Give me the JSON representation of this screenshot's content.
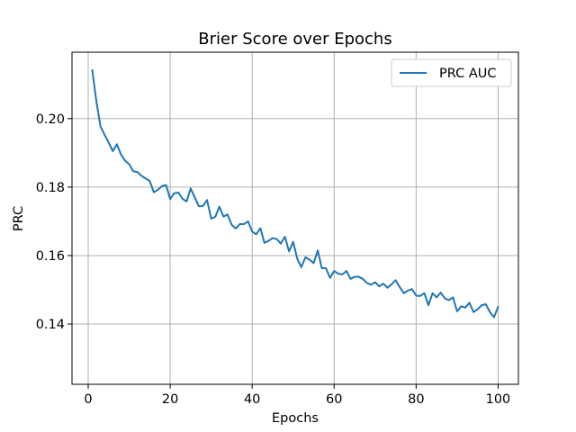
{
  "colors": {
    "series_line": "#1f77b4",
    "grid": "#b0b0b0",
    "axes": "#000000",
    "background": "#ffffff",
    "legend_border": "#cccccc"
  },
  "chart_data": {
    "type": "line",
    "title": "Brier Score over Epochs",
    "xlabel": "Epochs",
    "ylabel": "PRC",
    "xlim": [
      -3.95,
      104.95
    ],
    "ylim": [
      0.1224,
      0.2194
    ],
    "grid": true,
    "legend_position": "top-right",
    "x_ticks": [
      0,
      20,
      40,
      60,
      80,
      100
    ],
    "x_tick_labels": [
      "0",
      "20",
      "40",
      "60",
      "80",
      "100"
    ],
    "y_ticks": [
      0.14,
      0.16,
      0.18,
      0.2
    ],
    "y_tick_labels": [
      "0.14",
      "0.16",
      "0.18",
      "0.20"
    ],
    "series": [
      {
        "name": "PRC AUC",
        "x": [
          1,
          2,
          3,
          4,
          5,
          6,
          7,
          8,
          9,
          10,
          11,
          12,
          13,
          14,
          15,
          16,
          17,
          18,
          19,
          20,
          21,
          22,
          23,
          24,
          25,
          26,
          27,
          28,
          29,
          30,
          31,
          32,
          33,
          34,
          35,
          36,
          37,
          38,
          39,
          40,
          41,
          42,
          43,
          44,
          45,
          46,
          47,
          48,
          49,
          50,
          51,
          52,
          53,
          54,
          55,
          56,
          57,
          58,
          59,
          60,
          61,
          62,
          63,
          64,
          65,
          66,
          67,
          68,
          69,
          70,
          71,
          72,
          73,
          74,
          75,
          76,
          77,
          78,
          79,
          80,
          81,
          82,
          83,
          84,
          85,
          86,
          87,
          88,
          89,
          90,
          91,
          92,
          93,
          94,
          95,
          96,
          97,
          98,
          99,
          100
        ],
        "values": [
          0.2141,
          0.205,
          0.1977,
          0.1953,
          0.193,
          0.1905,
          0.1925,
          0.1895,
          0.1877,
          0.1867,
          0.1846,
          0.1844,
          0.1833,
          0.1825,
          0.1818,
          0.1785,
          0.1792,
          0.1803,
          0.1806,
          0.1765,
          0.1782,
          0.1784,
          0.1766,
          0.1758,
          0.1796,
          0.177,
          0.1744,
          0.1745,
          0.1762,
          0.1708,
          0.1713,
          0.1743,
          0.1714,
          0.172,
          0.169,
          0.1679,
          0.1692,
          0.1692,
          0.17,
          0.167,
          0.1662,
          0.168,
          0.1637,
          0.1643,
          0.1651,
          0.1648,
          0.1635,
          0.1655,
          0.1612,
          0.164,
          0.1591,
          0.1566,
          0.1595,
          0.1588,
          0.1578,
          0.1615,
          0.1563,
          0.1563,
          0.1535,
          0.1555,
          0.1547,
          0.1545,
          0.1555,
          0.1532,
          0.1538,
          0.1538,
          0.1532,
          0.152,
          0.1515,
          0.1522,
          0.151,
          0.1518,
          0.1506,
          0.1516,
          0.1528,
          0.1508,
          0.149,
          0.1498,
          0.1502,
          0.1483,
          0.1482,
          0.149,
          0.1455,
          0.149,
          0.1478,
          0.1492,
          0.1475,
          0.147,
          0.1478,
          0.1437,
          0.1452,
          0.1448,
          0.1462,
          0.1435,
          0.1443,
          0.1455,
          0.1458,
          0.1435,
          0.142,
          0.145
        ]
      }
    ]
  }
}
